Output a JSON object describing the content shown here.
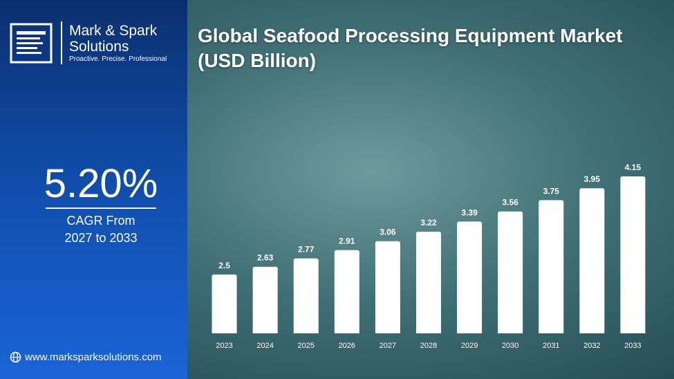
{
  "brand": {
    "name_line1": "Mark & Spark",
    "name_line2": "Solutions",
    "tagline": "Proactive. Precise. Professional"
  },
  "cagr": {
    "value": "5.20%",
    "label_line1": "CAGR From",
    "label_line2": "2027 to 2033"
  },
  "website": "www.marksparksolutions.com",
  "chart_data": {
    "type": "bar",
    "title": "Global Seafood Processing Equipment Market (USD Billion)",
    "categories": [
      "2023",
      "2024",
      "2025",
      "2026",
      "2027",
      "2028",
      "2029",
      "2030",
      "2031",
      "2032",
      "2033"
    ],
    "values": [
      2.5,
      2.63,
      2.77,
      2.91,
      3.06,
      3.22,
      3.39,
      3.56,
      3.75,
      3.95,
      4.15
    ],
    "color": "#ffffff"
  }
}
